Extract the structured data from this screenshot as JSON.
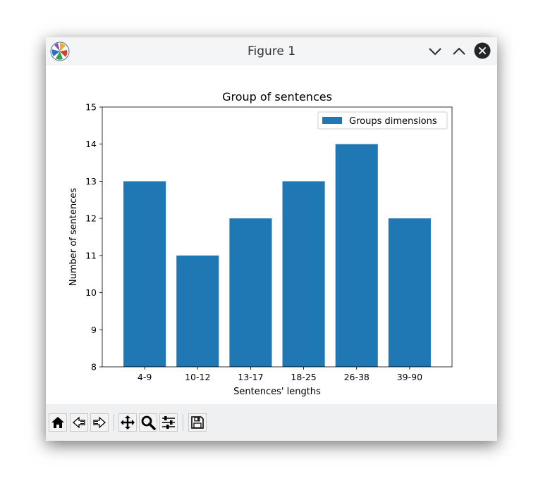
{
  "window": {
    "title": "Figure 1",
    "icons": {
      "app": "matplotlib-logo-icon",
      "minimize": "chevron-down-icon",
      "maximize": "chevron-up-icon",
      "close": "close-icon"
    }
  },
  "toolbar": {
    "buttons": [
      {
        "name": "home-button",
        "icon": "home-icon"
      },
      {
        "name": "back-button",
        "icon": "arrow-left-icon"
      },
      {
        "name": "forward-button",
        "icon": "arrow-right-icon"
      },
      {
        "name": "pan-button",
        "icon": "move-icon"
      },
      {
        "name": "zoom-button",
        "icon": "magnifier-icon"
      },
      {
        "name": "configure-subplots-button",
        "icon": "sliders-icon"
      },
      {
        "name": "save-button",
        "icon": "floppy-disk-icon"
      }
    ]
  },
  "chart_data": {
    "type": "bar",
    "title": "Group of sentences",
    "xlabel": "Sentences' lengths",
    "ylabel": "Number of sentences",
    "categories": [
      "4-9",
      "10-12",
      "13-17",
      "18-25",
      "26-38",
      "39-90"
    ],
    "series": [
      {
        "name": "Groups dimensions",
        "values": [
          13,
          11,
          12,
          13,
          14,
          12
        ],
        "color": "#1f77b4"
      }
    ],
    "ylim": [
      8,
      15
    ],
    "yticks": [
      8,
      9,
      10,
      11,
      12,
      13,
      14,
      15
    ],
    "grid": false,
    "legend": "top-right"
  }
}
